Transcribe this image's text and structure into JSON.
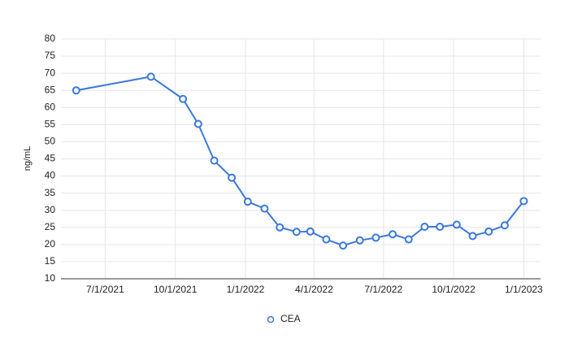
{
  "chart_data": {
    "type": "line",
    "y_label": "ng/mL",
    "x": [
      "2021-05-24",
      "2021-08-30",
      "2021-10-11",
      "2021-10-31",
      "2021-11-21",
      "2021-12-14",
      "2022-01-04",
      "2022-01-26",
      "2022-02-15",
      "2022-03-09",
      "2022-03-27",
      "2022-04-17",
      "2022-05-09",
      "2022-05-31",
      "2022-06-21",
      "2022-07-13",
      "2022-08-03",
      "2022-08-24",
      "2022-09-13",
      "2022-10-05",
      "2022-10-26",
      "2022-11-16",
      "2022-12-07",
      "2023-01-01"
    ],
    "series": [
      {
        "name": "CEA",
        "color": "#3c78d8",
        "values": [
          65,
          69,
          62.5,
          55.2,
          44.5,
          39.5,
          32.5,
          30.5,
          25,
          23.7,
          23.8,
          21.5,
          19.7,
          21.2,
          22,
          23,
          21.5,
          25.2,
          25.2,
          25.8,
          22.5,
          23.8,
          25.6,
          32.7
        ]
      }
    ],
    "xlim": [
      "2021-05-04",
      "2023-01-23"
    ],
    "xticks": [
      {
        "value": "2021-07-01",
        "label": "7/1/2021"
      },
      {
        "value": "2021-10-01",
        "label": "10/1/2021"
      },
      {
        "value": "2022-01-01",
        "label": "1/1/2022"
      },
      {
        "value": "2022-04-01",
        "label": "4/1/2022"
      },
      {
        "value": "2022-07-01",
        "label": "7/1/2022"
      },
      {
        "value": "2022-10-01",
        "label": "10/1/2022"
      },
      {
        "value": "2023-01-01",
        "label": "1/1/2023"
      }
    ],
    "ylim": [
      10,
      80
    ],
    "yticks": [
      10,
      15,
      20,
      25,
      30,
      35,
      40,
      45,
      50,
      55,
      60,
      65,
      70,
      75,
      80
    ],
    "grid": true
  }
}
